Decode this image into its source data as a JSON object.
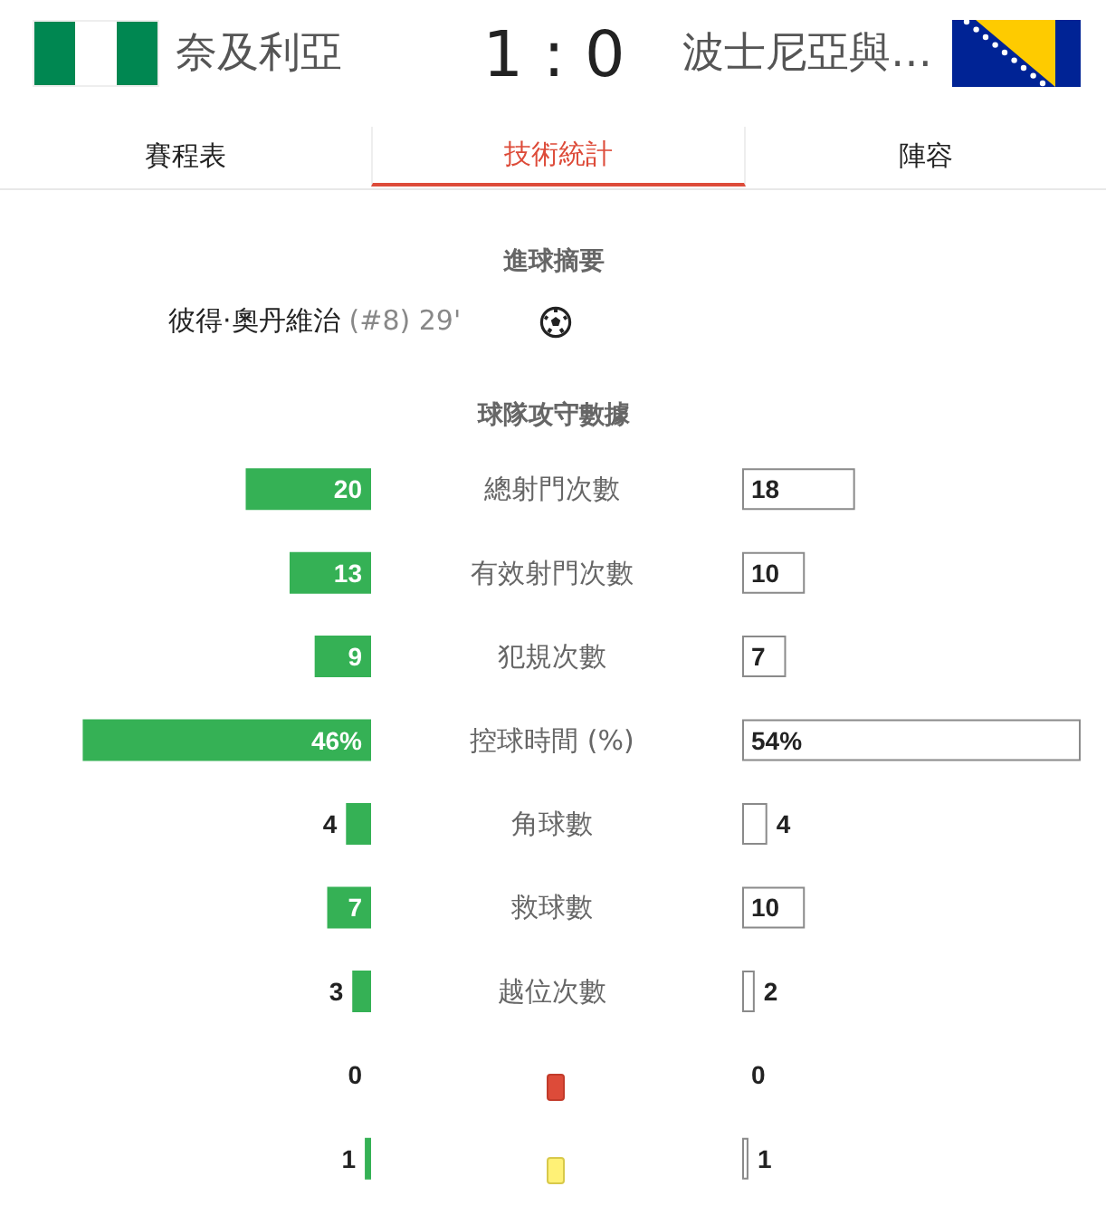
{
  "chart_data": [
    {
      "type": "bar",
      "orientation": "horizontal",
      "title": "球隊攻守數據",
      "categories": [
        "總射門次數",
        "有效射門次數",
        "犯規次數",
        "控球時間 (%)",
        "角球數",
        "救球數",
        "越位次數",
        null,
        null
      ],
      "series": [
        {
          "color": "#35b155",
          "values": [
            20,
            13,
            9,
            46,
            4,
            7,
            3,
            0,
            1
          ],
          "value_labels": [
            "20",
            "13",
            "9",
            "46%",
            "4",
            "7",
            "3",
            "0",
            "1"
          ]
        }
      ],
      "tick_labels": "y",
      "annotations": [
        "奈及利亞",
        "1 : 0",
        "波士尼亞與…",
        "賽程表",
        "技術統計",
        "陣容",
        "進球摘要",
        "彼得·奧丹維治",
        "(#8) 29'"
      ]
    },
    {
      "type": "bar",
      "orientation": "horizontal",
      "categories": [
        null,
        null,
        null,
        null,
        null,
        null,
        null,
        null,
        null
      ],
      "series": [
        {
          "color": "#ffffff",
          "values": [
            18,
            10,
            7,
            54,
            4,
            10,
            2,
            0,
            1
          ],
          "value_labels": [
            "18",
            "10",
            "7",
            "54%",
            "4",
            "10",
            "2",
            "0",
            "1"
          ]
        }
      ],
      "tick_labels": false
    }
  ]
}
